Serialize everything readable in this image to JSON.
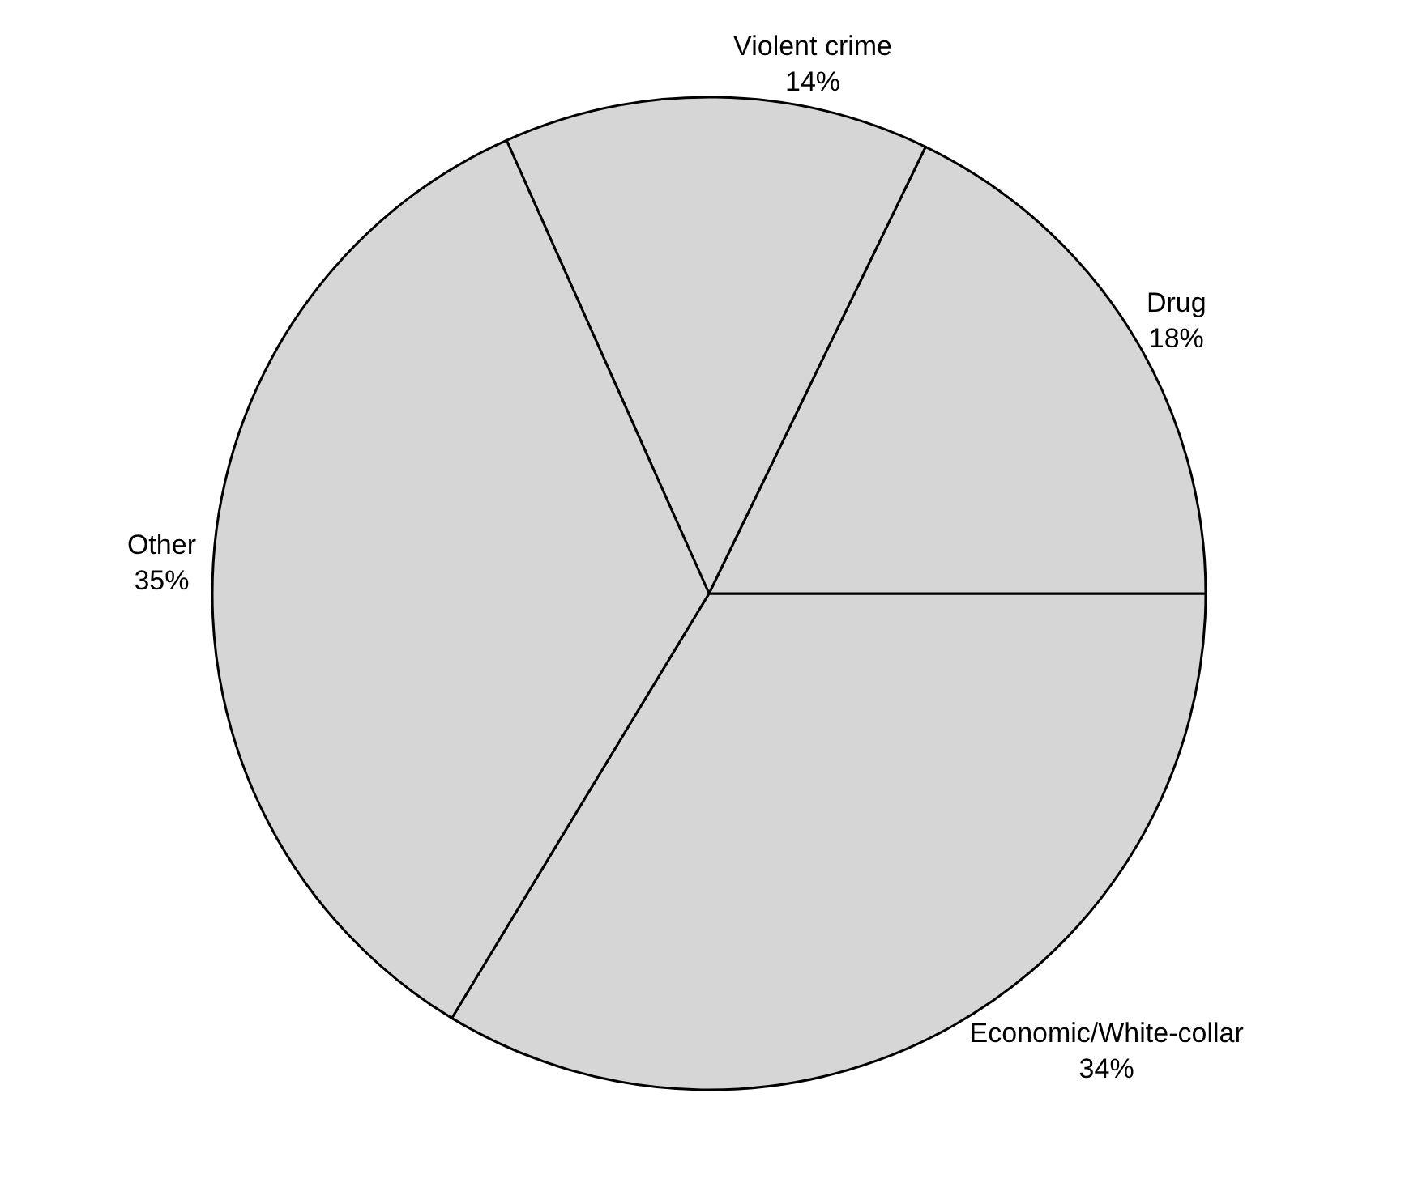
{
  "chart_data": {
    "type": "pie",
    "categories": [
      "Economic/White-collar",
      "Drug",
      "Violent crime",
      "Other"
    ],
    "values": [
      34,
      18,
      14,
      35
    ],
    "value_labels": [
      "34%",
      "18%",
      "14%",
      "35%"
    ],
    "colors": [
      "#d6d6d6",
      "#d6d6d6",
      "#d6d6d6",
      "#d6d6d6"
    ]
  }
}
